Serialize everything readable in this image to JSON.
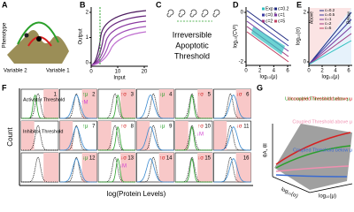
{
  "panels": {
    "A": {
      "label": "A",
      "y_label": "Phenotype",
      "x_labels": [
        "Variable 2",
        "Variable 1"
      ]
    },
    "B": {
      "label": "B",
      "y_label": "Output",
      "x_label": "Input",
      "yticks": [
        0,
        1,
        2
      ],
      "xticks": [
        0,
        10,
        20
      ]
    },
    "C": {
      "label": "C",
      "caption": [
        "Irreversible",
        "Apoptotic",
        "Threshold"
      ]
    },
    "D": {
      "label": "D",
      "y_label": "log₁₀(CV²)",
      "x_label": "log₁₀(μ)",
      "legend": [
        "Exp",
        "c=0.2",
        "c=0.5",
        "c=1",
        "c=2",
        "c=5"
      ],
      "yticks": [
        0,
        -2
      ],
      "xticks": [
        0,
        2,
        4,
        6
      ]
    },
    "E": {
      "label": "E",
      "y_label": "log₁₀(σ)",
      "x_label": "log₁₀(μ)",
      "legend": [
        "c=0.2",
        "c=0.5",
        "c=1",
        "c=2",
        "c=5"
      ],
      "regions": [
        "Above",
        "Below"
      ],
      "yticks": [
        0,
        2
      ],
      "xticks": [
        0,
        2,
        4,
        6
      ]
    },
    "F": {
      "label": "F",
      "y_label": "Count",
      "x_label": "log(Protein Levels)",
      "activator": "Activator Threshold",
      "inhibitor": "Inhibitor Threshold",
      "subpanels": [
        {
          "number": 1
        },
        {
          "number": 2,
          "tags": [
            "↑μ",
            "↑M"
          ]
        },
        {
          "number": 3,
          "tags": [
            "↑σ"
          ]
        },
        {
          "number": 4,
          "tags": [
            "↓μ"
          ]
        },
        {
          "number": 5,
          "tags": [
            "↑σ"
          ]
        },
        {
          "number": 6,
          "tags": [
            "↓σ"
          ]
        },
        {
          "number": 7,
          "tags": [
            "↑μ"
          ]
        },
        {
          "number": 8,
          "tags": [
            "↑σ"
          ]
        },
        {
          "number": 9,
          "tags": [
            "↓μ"
          ]
        },
        {
          "number": 10,
          "tags": [
            "↑σ",
            "↓M"
          ]
        },
        {
          "number": 11,
          "tags": [
            "↓σ"
          ]
        },
        {
          "number": 12,
          "tags": [
            "↓μ"
          ]
        },
        {
          "number": 13,
          "tags": [
            "↓σ",
            "↓M"
          ]
        },
        {
          "number": 14,
          "tags": [
            "↑σ"
          ]
        },
        {
          "number": 15,
          "tags": [
            "↓σ"
          ]
        },
        {
          "number": 16
        }
      ]
    },
    "G": {
      "label": "G",
      "y_label": "θA, θI",
      "x_labels": [
        "log₁₀(σ)",
        "log₁₀(μ)"
      ],
      "annotations": [
        "Uncoupled Threshold below μ",
        "Uncoupled Threshold above μ",
        "Coupled Threshold above μ",
        "Coupled Threshold below μ"
      ]
    }
  }
}
